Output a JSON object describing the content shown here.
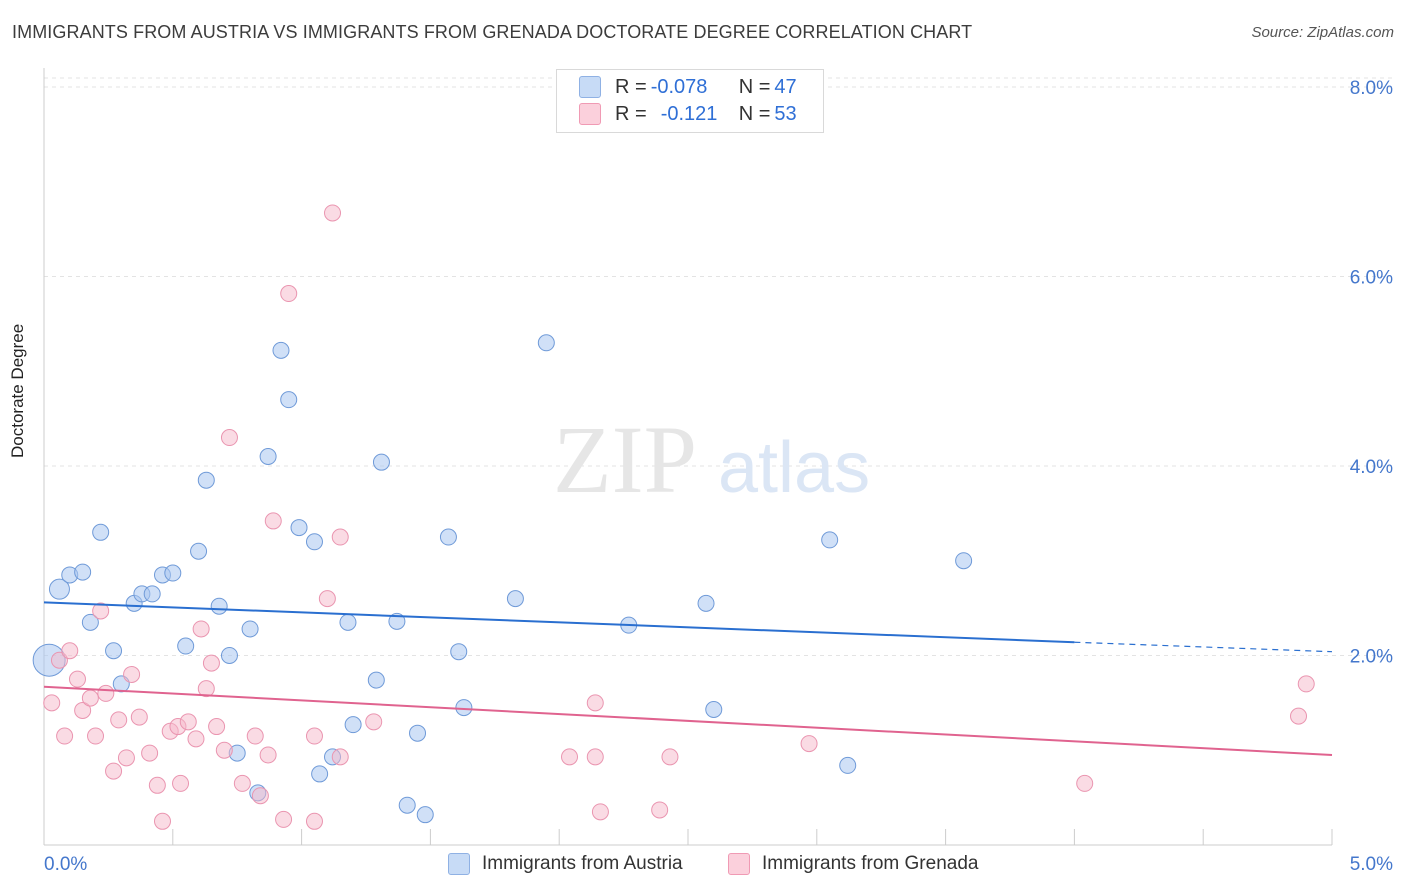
{
  "header": {
    "title": "IMMIGRANTS FROM AUSTRIA VS IMMIGRANTS FROM GRENADA DOCTORATE DEGREE CORRELATION CHART",
    "source": "Source: ZipAtlas.com"
  },
  "watermark": {
    "zip": "ZIP",
    "atlas": "atlas"
  },
  "legend": {
    "rows": [
      {
        "r_label": "R = ",
        "r_value": "-0.078",
        "n_label": "N = ",
        "n_value": "47",
        "color": "#a9c6f0"
      },
      {
        "r_label": "R = ",
        "r_value": "-0.121",
        "n_label": "N = ",
        "n_value": "53",
        "color": "#f6b7c9"
      }
    ]
  },
  "bottom_legend": {
    "austria": "Immigrants from Austria",
    "grenada": "Immigrants from Grenada"
  },
  "chart_data": {
    "type": "scatter",
    "title": "IMMIGRANTS FROM AUSTRIA VS IMMIGRANTS FROM GRENADA DOCTORATE DEGREE CORRELATION CHART",
    "xlabel": "",
    "ylabel": "Doctorate Degree",
    "xlim": [
      0,
      5
    ],
    "ylim": [
      0,
      8.2
    ],
    "x_tick_labels": [
      "0.0%",
      "5.0%"
    ],
    "y_ticks": [
      2,
      4,
      6,
      8
    ],
    "y_tick_labels": [
      "2.0%",
      "4.0%",
      "6.0%",
      "8.0%"
    ],
    "grid": true,
    "legend_position": "top-center",
    "colors": {
      "austria": "#a9c6f0",
      "austria_line": "#2a6fd0",
      "grenada": "#f6b7c9",
      "grenada_line": "#e0638f"
    },
    "series": [
      {
        "name": "Immigrants from Austria",
        "points": [
          [
            0.02,
            1.95
          ],
          [
            0.06,
            2.7
          ],
          [
            0.1,
            2.85
          ],
          [
            0.15,
            2.88
          ],
          [
            0.18,
            2.35
          ],
          [
            0.22,
            3.3
          ],
          [
            0.27,
            2.05
          ],
          [
            0.3,
            1.7
          ],
          [
            0.35,
            2.55
          ],
          [
            0.38,
            2.65
          ],
          [
            0.42,
            2.65
          ],
          [
            0.46,
            2.85
          ],
          [
            0.5,
            2.87
          ],
          [
            0.55,
            2.1
          ],
          [
            0.6,
            3.1
          ],
          [
            0.63,
            3.85
          ],
          [
            0.68,
            2.52
          ],
          [
            0.72,
            2.0
          ],
          [
            0.75,
            0.97
          ],
          [
            0.8,
            2.28
          ],
          [
            0.83,
            0.55
          ],
          [
            0.87,
            4.1
          ],
          [
            0.92,
            5.22
          ],
          [
            0.95,
            4.7
          ],
          [
            0.99,
            3.35
          ],
          [
            1.05,
            3.2
          ],
          [
            1.07,
            0.75
          ],
          [
            1.12,
            0.93
          ],
          [
            1.18,
            2.35
          ],
          [
            1.2,
            1.27
          ],
          [
            1.29,
            1.74
          ],
          [
            1.31,
            4.04
          ],
          [
            1.37,
            2.36
          ],
          [
            1.41,
            0.42
          ],
          [
            1.45,
            1.18
          ],
          [
            1.48,
            0.32
          ],
          [
            1.57,
            3.25
          ],
          [
            1.61,
            2.04
          ],
          [
            1.63,
            1.45
          ],
          [
            1.83,
            2.6
          ],
          [
            1.95,
            5.3
          ],
          [
            2.27,
            2.32
          ],
          [
            2.57,
            2.55
          ],
          [
            2.6,
            1.43
          ],
          [
            3.05,
            3.22
          ],
          [
            3.12,
            0.84
          ],
          [
            3.57,
            3.0
          ]
        ],
        "trend": {
          "x": [
            0,
            4.0
          ],
          "y": [
            2.56,
            2.14
          ],
          "dash_to": [
            5.0,
            2.04
          ]
        }
      },
      {
        "name": "Immigrants from Grenada",
        "points": [
          [
            0.03,
            1.5
          ],
          [
            0.06,
            1.95
          ],
          [
            0.08,
            1.15
          ],
          [
            0.1,
            2.05
          ],
          [
            0.13,
            1.75
          ],
          [
            0.15,
            1.42
          ],
          [
            0.18,
            1.55
          ],
          [
            0.2,
            1.15
          ],
          [
            0.22,
            2.47
          ],
          [
            0.24,
            1.6
          ],
          [
            0.27,
            0.78
          ],
          [
            0.29,
            1.32
          ],
          [
            0.32,
            0.92
          ],
          [
            0.34,
            1.8
          ],
          [
            0.37,
            1.35
          ],
          [
            0.41,
            0.97
          ],
          [
            0.44,
            0.63
          ],
          [
            0.46,
            0.25
          ],
          [
            0.49,
            1.2
          ],
          [
            0.52,
            1.25
          ],
          [
            0.53,
            0.65
          ],
          [
            0.56,
            1.3
          ],
          [
            0.59,
            1.12
          ],
          [
            0.61,
            2.28
          ],
          [
            0.63,
            1.65
          ],
          [
            0.65,
            1.92
          ],
          [
            0.67,
            1.25
          ],
          [
            0.7,
            1.0
          ],
          [
            0.72,
            4.3
          ],
          [
            0.77,
            0.65
          ],
          [
            0.82,
            1.15
          ],
          [
            0.84,
            0.52
          ],
          [
            0.87,
            0.95
          ],
          [
            0.89,
            3.42
          ],
          [
            0.93,
            0.27
          ],
          [
            0.95,
            5.82
          ],
          [
            1.05,
            1.15
          ],
          [
            1.05,
            0.25
          ],
          [
            1.1,
            2.6
          ],
          [
            1.12,
            6.67
          ],
          [
            1.15,
            0.93
          ],
          [
            1.15,
            3.25
          ],
          [
            1.28,
            1.3
          ],
          [
            2.04,
            0.93
          ],
          [
            2.14,
            0.93
          ],
          [
            2.14,
            1.5
          ],
          [
            2.16,
            0.35
          ],
          [
            2.39,
            0.37
          ],
          [
            2.43,
            0.93
          ],
          [
            2.97,
            1.07
          ],
          [
            4.04,
            0.65
          ],
          [
            4.87,
            1.36
          ],
          [
            4.9,
            1.7
          ]
        ],
        "trend": {
          "x": [
            0,
            5.0
          ],
          "y": [
            1.67,
            0.95
          ]
        }
      }
    ]
  }
}
